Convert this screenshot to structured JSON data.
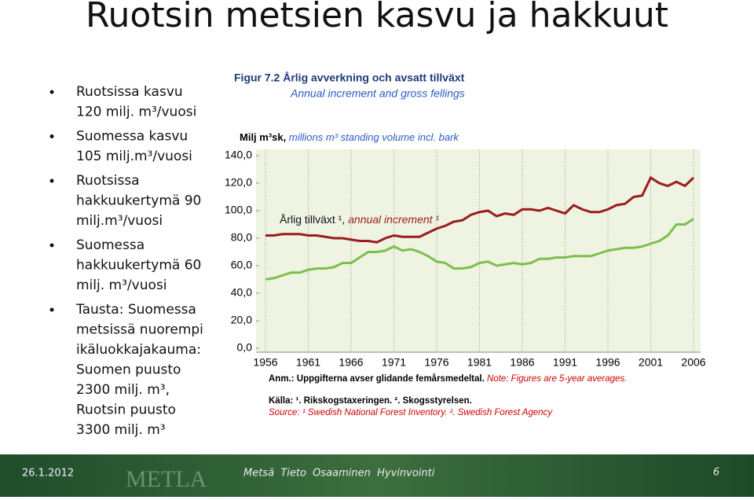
{
  "header": {
    "title": "Ruotsin metsien kasvu ja hakkuut"
  },
  "bullets": [
    [
      "Ruotsissa kasvu",
      "120 milj. m³/vuosi"
    ],
    [
      "Suomessa kasvu",
      "105 milj.m³/vuosi"
    ],
    [
      "Ruotsissa",
      "hakkuukertymä 90",
      "milj.m³/vuosi"
    ],
    [
      "Suomessa",
      "hakkuukertymä 60",
      "milj. m³/vuosi"
    ],
    [
      "Tausta: Suomessa",
      "metsissä nuorempi",
      "ikäluokkajakauma:",
      "Suomen puusto",
      "2300 milj. m³,",
      "Ruotsin puusto",
      "3300 milj. m³"
    ]
  ],
  "chart_data": {
    "type": "line",
    "title": "Figur 7.2 Årlig avverkning och avsatt tillväxt",
    "subtitle": "Annual increment and gross fellings",
    "y_label": [
      "Milj m³sk,",
      "millions m³ standing volume incl. bark"
    ],
    "annotation": [
      "Årlig tillväxt ¹,",
      "annual increment ¹"
    ],
    "notes": [
      "Anm.: Uppgifterna avser glidande femårsmedeltal.",
      "Note: Figures are 5-year averages."
    ],
    "sources": [
      "Källa: ¹. Rikskogstaxeringen. ². Skogsstyrelsen.",
      "Source: ¹ Swedish National Forest Inventory. ². Swedish Forest Agency"
    ],
    "x": [
      1956,
      1957,
      1958,
      1959,
      1960,
      1961,
      1962,
      1963,
      1964,
      1965,
      1966,
      1967,
      1968,
      1969,
      1970,
      1971,
      1972,
      1973,
      1974,
      1975,
      1976,
      1977,
      1978,
      1979,
      1980,
      1981,
      1982,
      1983,
      1984,
      1985,
      1986,
      1987,
      1988,
      1989,
      1990,
      1991,
      1992,
      1993,
      1994,
      1995,
      1996,
      1997,
      1998,
      1999,
      2000,
      2001,
      2002,
      2003,
      2004,
      2005,
      2006
    ],
    "series": [
      {
        "color": "#9b1c1c",
        "values": [
          82,
          82,
          83,
          83,
          83,
          82,
          82,
          81,
          80,
          80,
          79,
          78,
          78,
          77,
          80,
          82,
          81,
          81,
          81,
          84,
          87,
          89,
          92,
          93,
          97,
          99,
          100,
          96,
          98,
          97,
          101,
          101,
          100,
          102,
          100,
          98,
          104,
          101,
          99,
          99,
          101,
          104,
          105,
          110,
          111,
          124,
          120,
          118,
          121,
          118,
          124
        ]
      },
      {
        "color": "#7cbf4a",
        "values": [
          50,
          51,
          53,
          55,
          55,
          57,
          58,
          58,
          59,
          62,
          62,
          66,
          70,
          70,
          71,
          74,
          71,
          72,
          70,
          67,
          63,
          62,
          58,
          58,
          59,
          62,
          63,
          60,
          61,
          62,
          61,
          62,
          65,
          65,
          66,
          66,
          67,
          67,
          67,
          69,
          71,
          72,
          73,
          73,
          74,
          76,
          78,
          82,
          90,
          90,
          94
        ]
      }
    ],
    "xlim": [
      1955,
      2007
    ],
    "xticks": [
      1956,
      1961,
      1966,
      1971,
      1976,
      1981,
      1986,
      1991,
      1996,
      2001,
      2006
    ],
    "ylim": [
      0,
      140
    ],
    "yticks": [
      {
        "value": 0,
        "label": "0,0"
      },
      {
        "value": 20,
        "label": "20,0"
      },
      {
        "value": 40,
        "label": "40,0"
      },
      {
        "value": 60,
        "label": "60,0"
      },
      {
        "value": 80,
        "label": "80,0"
      },
      {
        "value": 100,
        "label": "100,0"
      },
      {
        "value": 120,
        "label": "120,0"
      },
      {
        "value": 140,
        "label": "140,0"
      }
    ]
  },
  "footer": {
    "date": "26.1.2012",
    "logo": "METLA",
    "motto": "Metsä  Tieto  Osaaminen  Hyvinvointi",
    "page": "6"
  }
}
